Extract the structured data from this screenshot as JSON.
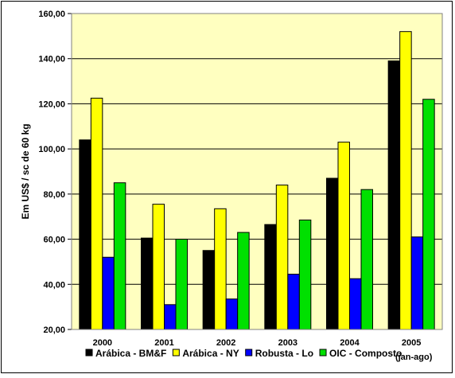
{
  "chart_data": {
    "type": "bar",
    "categories": [
      "2000",
      "2001",
      "2002",
      "2003",
      "2004",
      "2005"
    ],
    "category_note": "(jan-ago)",
    "ylabel": "Em US$ / sc de 60 kg",
    "xlabel": "",
    "title": "",
    "ylim": [
      20,
      160
    ],
    "yticks": [
      "20,00",
      "40,00",
      "60,00",
      "80,00",
      "100,00",
      "120,00",
      "140,00",
      "160,00"
    ],
    "grid": true,
    "legend_position": "bottom",
    "plot_background": "#FFFFC0",
    "series": [
      {
        "name": "Arábica - BM&F",
        "color": "#000000",
        "values": [
          104,
          60.5,
          55,
          66.5,
          87,
          139
        ]
      },
      {
        "name": "Arábica - NY",
        "color": "#FFFF00",
        "values": [
          122.5,
          75.5,
          73.5,
          84,
          103,
          152
        ]
      },
      {
        "name": "Robusta - Lo",
        "color": "#0000FF",
        "values": [
          52,
          31,
          33.5,
          44.5,
          42.5,
          61
        ]
      },
      {
        "name": "OIC - Composto",
        "color": "#00E000",
        "values": [
          85,
          60,
          63,
          68.5,
          82,
          122
        ]
      }
    ]
  }
}
